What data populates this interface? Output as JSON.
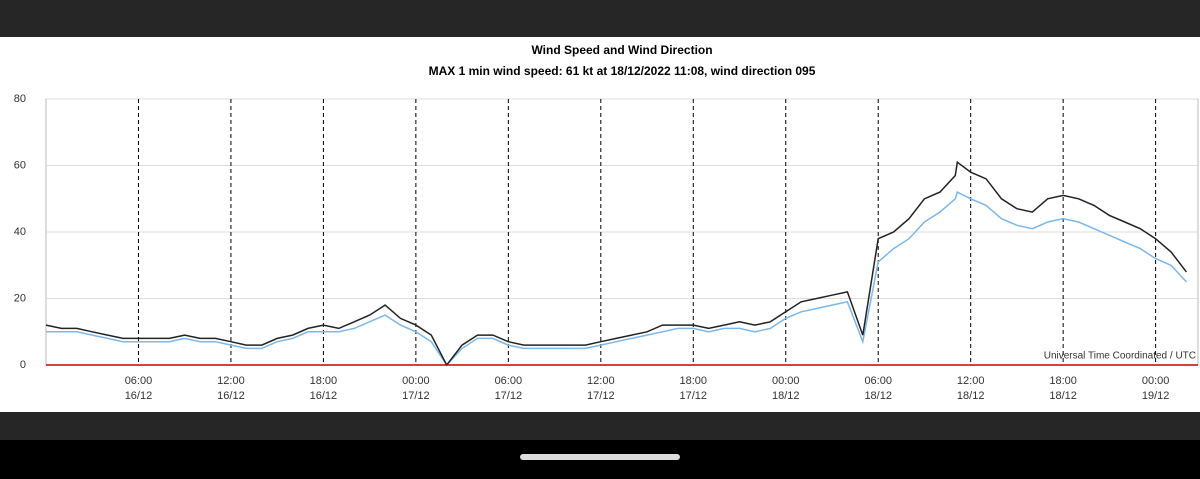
{
  "chart_data": {
    "type": "line",
    "title": "Wind Speed and Wind Direction",
    "subtitle": "MAX 1 min wind speed: 61 kt at 18/12/2022 11:08, wind direction 095",
    "annotation": "Universal Time Coordinated / UTC",
    "x": [
      "16/12 00:00",
      "16/12 01:00",
      "16/12 02:00",
      "16/12 03:00",
      "16/12 04:00",
      "16/12 05:00",
      "16/12 06:00",
      "16/12 07:00",
      "16/12 08:00",
      "16/12 09:00",
      "16/12 10:00",
      "16/12 11:00",
      "16/12 12:00",
      "16/12 13:00",
      "16/12 14:00",
      "16/12 15:00",
      "16/12 16:00",
      "16/12 17:00",
      "16/12 18:00",
      "16/12 19:00",
      "16/12 20:00",
      "16/12 21:00",
      "16/12 22:00",
      "16/12 23:00",
      "17/12 00:00",
      "17/12 01:00",
      "17/12 02:00",
      "17/12 03:00",
      "17/12 04:00",
      "17/12 05:00",
      "17/12 06:00",
      "17/12 07:00",
      "17/12 08:00",
      "17/12 09:00",
      "17/12 10:00",
      "17/12 11:00",
      "17/12 12:00",
      "17/12 13:00",
      "17/12 14:00",
      "17/12 15:00",
      "17/12 16:00",
      "17/12 17:00",
      "17/12 18:00",
      "17/12 19:00",
      "17/12 20:00",
      "17/12 21:00",
      "17/12 22:00",
      "17/12 23:00",
      "18/12 00:00",
      "18/12 01:00",
      "18/12 02:00",
      "18/12 03:00",
      "18/12 04:00",
      "18/12 05:00",
      "18/12 06:00",
      "18/12 07:00",
      "18/12 08:00",
      "18/12 09:00",
      "18/12 10:00",
      "18/12 11:00",
      "18/12 11:08",
      "18/12 12:00",
      "18/12 13:00",
      "18/12 14:00",
      "18/12 15:00",
      "18/12 16:00",
      "18/12 17:00",
      "18/12 18:00",
      "18/12 19:00",
      "18/12 20:00",
      "18/12 21:00",
      "18/12 22:00",
      "18/12 23:00",
      "19/12 00:00",
      "19/12 01:00",
      "19/12 02:00"
    ],
    "series": [
      {
        "color": "#7ab8ee",
        "values": [
          10,
          10,
          10,
          9,
          8,
          7,
          7,
          7,
          7,
          8,
          7,
          7,
          6,
          5,
          5,
          7,
          8,
          10,
          10,
          10,
          11,
          13,
          15,
          12,
          10,
          7,
          0,
          5,
          8,
          8,
          6,
          5,
          5,
          5,
          5,
          5,
          6,
          7,
          8,
          9,
          10,
          11,
          11,
          10,
          11,
          11,
          10,
          11,
          14,
          16,
          17,
          18,
          19,
          7,
          31,
          35,
          38,
          43,
          46,
          50,
          52,
          50,
          48,
          44,
          42,
          41,
          43,
          44,
          43,
          41,
          39,
          37,
          35,
          32,
          30,
          25
        ]
      },
      {
        "color": "#222222",
        "values": [
          12,
          11,
          11,
          10,
          9,
          8,
          8,
          8,
          8,
          9,
          8,
          8,
          7,
          6,
          6,
          8,
          9,
          11,
          12,
          11,
          13,
          15,
          18,
          14,
          12,
          9,
          0,
          6,
          9,
          9,
          7,
          6,
          6,
          6,
          6,
          6,
          7,
          8,
          9,
          10,
          12,
          12,
          12,
          11,
          12,
          13,
          12,
          13,
          16,
          19,
          20,
          21,
          22,
          9,
          38,
          40,
          44,
          50,
          52,
          57,
          61,
          58,
          56,
          50,
          47,
          46,
          50,
          51,
          50,
          48,
          45,
          43,
          41,
          38,
          34,
          28
        ]
      }
    ],
    "xlim": [
      "16/12 00:00",
      "19/12 02:45"
    ],
    "xticks": [
      {
        "value": "16/12 06:00",
        "label": [
          "06:00",
          "16/12"
        ]
      },
      {
        "value": "16/12 12:00",
        "label": [
          "12:00",
          "16/12"
        ]
      },
      {
        "value": "16/12 18:00",
        "label": [
          "18:00",
          "16/12"
        ]
      },
      {
        "value": "17/12 00:00",
        "label": [
          "00:00",
          "17/12"
        ]
      },
      {
        "value": "17/12 06:00",
        "label": [
          "06:00",
          "17/12"
        ]
      },
      {
        "value": "17/12 12:00",
        "label": [
          "12:00",
          "17/12"
        ]
      },
      {
        "value": "17/12 18:00",
        "label": [
          "18:00",
          "17/12"
        ]
      },
      {
        "value": "18/12 00:00",
        "label": [
          "00:00",
          "18/12"
        ]
      },
      {
        "value": "18/12 06:00",
        "label": [
          "06:00",
          "18/12"
        ]
      },
      {
        "value": "18/12 12:00",
        "label": [
          "12:00",
          "18/12"
        ]
      },
      {
        "value": "18/12 18:00",
        "label": [
          "18:00",
          "18/12"
        ]
      },
      {
        "value": "19/12 00:00",
        "label": [
          "00:00",
          "19/12"
        ]
      }
    ],
    "ylim": [
      0,
      80
    ],
    "yticks": [
      0,
      20,
      40,
      60,
      80
    ],
    "grid": true,
    "zero_line_color": "#cc0000"
  }
}
